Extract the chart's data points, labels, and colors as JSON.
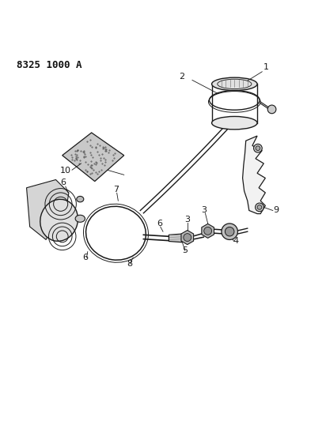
{
  "title_code": "8325 1000 A",
  "background_color": "#ffffff",
  "line_color": "#1a1a1a",
  "label_color": "#111111",
  "figsize": [
    4.12,
    5.33
  ],
  "dpi": 100
}
